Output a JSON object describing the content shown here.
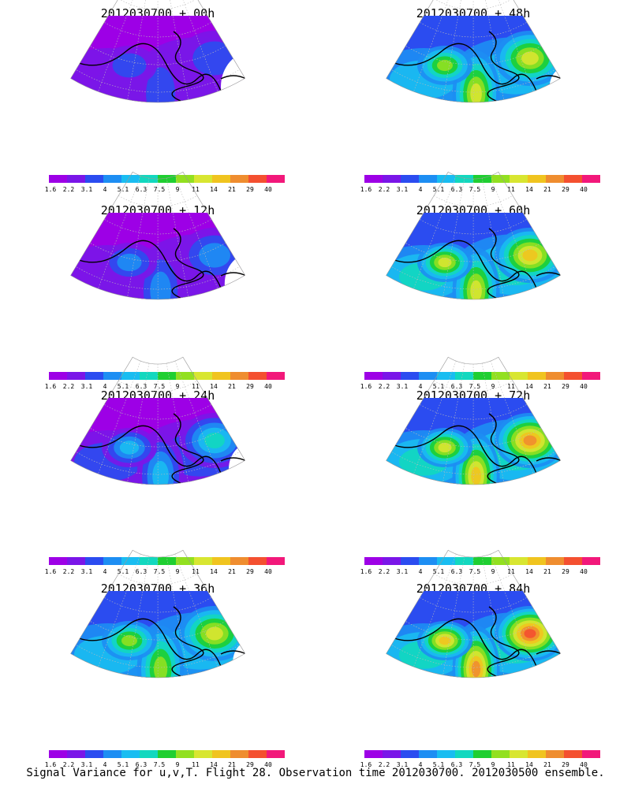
{
  "panels": [
    {
      "title": "2012030700 + 00h",
      "lead": "00h",
      "intensity": 0.2
    },
    {
      "title": "2012030700 + 12h",
      "lead": "12h",
      "intensity": 0.32
    },
    {
      "title": "2012030700 + 24h",
      "lead": "24h",
      "intensity": 0.45
    },
    {
      "title": "2012030700 + 36h",
      "lead": "36h",
      "intensity": 0.58
    },
    {
      "title": "2012030700 + 48h",
      "lead": "48h",
      "intensity": 0.62
    },
    {
      "title": "2012030700 + 60h",
      "lead": "60h",
      "intensity": 0.7
    },
    {
      "title": "2012030700 + 72h",
      "lead": "72h",
      "intensity": 0.78
    },
    {
      "title": "2012030700 + 84h",
      "lead": "84h",
      "intensity": 0.85
    }
  ],
  "colorbar": {
    "labels": [
      "1.6",
      "2.2",
      "3.1",
      "4",
      "5.1",
      "6.3",
      "7.5",
      "9",
      "11",
      "14",
      "21",
      "29",
      "40"
    ],
    "colors": [
      "#9d00e6",
      "#7a16e8",
      "#2b4cf0",
      "#1d8ef3",
      "#19bdf1",
      "#12d8bf",
      "#1fcf31",
      "#92e020",
      "#d8e631",
      "#f0c41f",
      "#ef8d2f",
      "#f45030",
      "#f2187a"
    ]
  },
  "caption": "Signal Variance for u,v,T. Flight 28. Observation time 2012030700. 2012030500 ensemble."
}
